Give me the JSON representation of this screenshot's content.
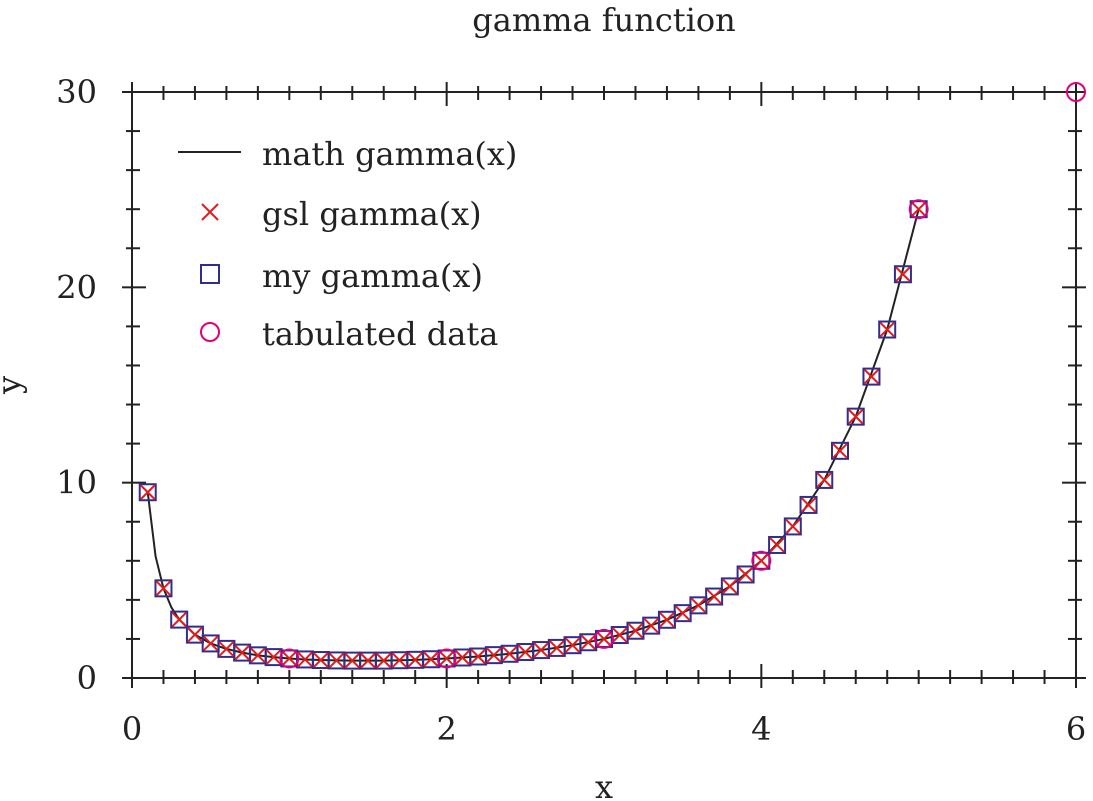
{
  "chart_data": {
    "type": "line",
    "title": "gamma function",
    "xlabel": "x",
    "ylabel": "y",
    "xlim": [
      0,
      6
    ],
    "ylim": [
      0,
      30
    ],
    "x_ticks": [
      "0",
      "2",
      "4",
      "6"
    ],
    "y_ticks": [
      "0",
      "10",
      "20",
      "30"
    ],
    "legend_position": "top-left",
    "grid": false,
    "colors": {
      "math": "#222222",
      "gsl": "#e41a1c",
      "my": "#2e2e8f",
      "tab": "#e0007a"
    },
    "series": [
      {
        "name": "math gamma(x)",
        "style": "line",
        "x": [
          0.1,
          0.15,
          0.2,
          0.25,
          0.3,
          0.4,
          0.5,
          0.6,
          0.7,
          0.8,
          0.9,
          1.0,
          1.1,
          1.2,
          1.3,
          1.4,
          1.5,
          1.6,
          1.7,
          1.8,
          1.9,
          2.0,
          2.2,
          2.4,
          2.6,
          2.8,
          3.0,
          3.2,
          3.4,
          3.6,
          3.8,
          4.0,
          4.2,
          4.4,
          4.6,
          4.8,
          5.0
        ],
        "y": [
          9.51,
          6.22,
          4.59,
          3.62,
          2.99,
          2.22,
          1.77,
          1.49,
          1.3,
          1.16,
          1.07,
          1.0,
          0.95,
          0.92,
          0.9,
          0.89,
          0.89,
          0.89,
          0.91,
          0.93,
          0.96,
          1.0,
          1.1,
          1.24,
          1.43,
          1.68,
          2.0,
          2.42,
          2.98,
          3.72,
          4.69,
          6.0,
          7.76,
          10.14,
          13.38,
          17.84,
          24.0
        ]
      },
      {
        "name": "gsl gamma(x)",
        "style": "x-marker",
        "x": [
          0.1,
          0.2,
          0.3,
          0.4,
          0.5,
          0.6,
          0.7,
          0.8,
          0.9,
          1.0,
          1.1,
          1.2,
          1.3,
          1.4,
          1.5,
          1.6,
          1.7,
          1.8,
          1.9,
          2.0,
          2.1,
          2.2,
          2.3,
          2.4,
          2.5,
          2.6,
          2.7,
          2.8,
          2.9,
          3.0,
          3.1,
          3.2,
          3.3,
          3.4,
          3.5,
          3.6,
          3.7,
          3.8,
          3.9,
          4.0,
          4.1,
          4.2,
          4.3,
          4.4,
          4.5,
          4.6,
          4.7,
          4.8,
          4.9,
          5.0
        ],
        "y": [
          9.51,
          4.59,
          2.99,
          2.22,
          1.77,
          1.49,
          1.3,
          1.16,
          1.07,
          1.0,
          0.95,
          0.92,
          0.9,
          0.89,
          0.89,
          0.89,
          0.91,
          0.93,
          0.96,
          1.0,
          1.05,
          1.1,
          1.17,
          1.24,
          1.33,
          1.43,
          1.54,
          1.68,
          1.83,
          2.0,
          2.2,
          2.42,
          2.68,
          2.98,
          3.32,
          3.72,
          4.17,
          4.69,
          5.3,
          6.0,
          6.81,
          7.76,
          8.86,
          10.14,
          11.63,
          13.38,
          15.43,
          17.84,
          20.67,
          24.0
        ]
      },
      {
        "name": "my gamma(x)",
        "style": "square-marker",
        "x": [
          0.1,
          0.2,
          0.3,
          0.4,
          0.5,
          0.6,
          0.7,
          0.8,
          0.9,
          1.0,
          1.1,
          1.2,
          1.3,
          1.4,
          1.5,
          1.6,
          1.7,
          1.8,
          1.9,
          2.0,
          2.1,
          2.2,
          2.3,
          2.4,
          2.5,
          2.6,
          2.7,
          2.8,
          2.9,
          3.0,
          3.1,
          3.2,
          3.3,
          3.4,
          3.5,
          3.6,
          3.7,
          3.8,
          3.9,
          4.0,
          4.1,
          4.2,
          4.3,
          4.4,
          4.5,
          4.6,
          4.7,
          4.8,
          4.9,
          5.0
        ],
        "y": [
          9.51,
          4.59,
          2.99,
          2.22,
          1.77,
          1.49,
          1.3,
          1.16,
          1.07,
          1.0,
          0.95,
          0.92,
          0.9,
          0.89,
          0.89,
          0.89,
          0.91,
          0.93,
          0.96,
          1.0,
          1.05,
          1.1,
          1.17,
          1.24,
          1.33,
          1.43,
          1.54,
          1.68,
          1.83,
          2.0,
          2.2,
          2.42,
          2.68,
          2.98,
          3.32,
          3.72,
          4.17,
          4.69,
          5.3,
          6.0,
          6.81,
          7.76,
          8.86,
          10.14,
          11.63,
          13.38,
          15.43,
          17.84,
          20.67,
          24.0
        ]
      },
      {
        "name": "tabulated data",
        "style": "circle-marker",
        "x": [
          1,
          2,
          3,
          4,
          5,
          6
        ],
        "y": [
          1,
          1,
          2,
          6,
          24,
          30
        ]
      }
    ]
  }
}
